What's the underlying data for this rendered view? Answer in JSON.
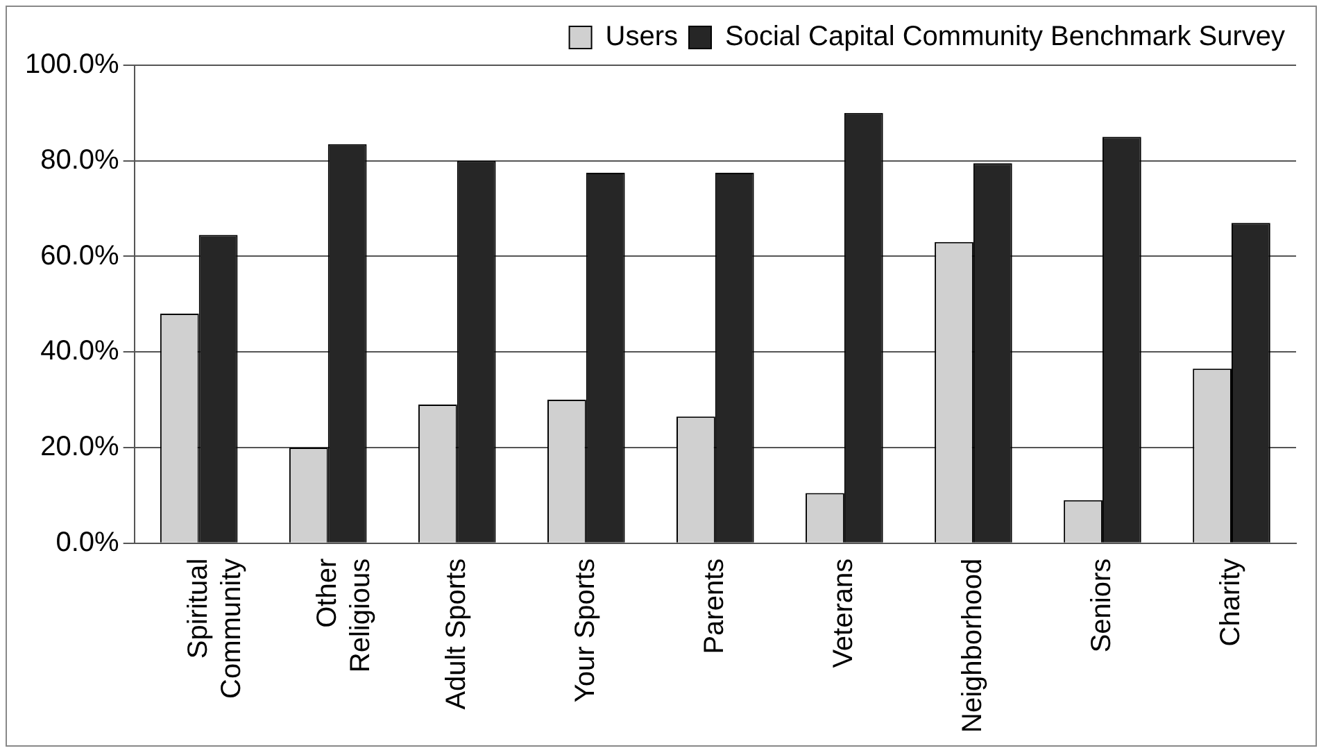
{
  "chart_data": {
    "type": "bar",
    "categories": [
      "Spiritual Community",
      "Other Religious",
      "Adult Sports",
      "Your Sports",
      "Parents",
      "Veterans",
      "Neighborhood",
      "Seniors",
      "Charity"
    ],
    "series": [
      {
        "name": "Users",
        "color": "#d0d0d0",
        "values": [
          48,
          20,
          29,
          30,
          26.5,
          10.5,
          63,
          9,
          36.5
        ]
      },
      {
        "name": "Social Capital Community Benchmark Survey",
        "color": "#262626",
        "values": [
          64.5,
          83.5,
          80,
          77.5,
          77.5,
          90,
          79.5,
          85,
          67
        ]
      }
    ],
    "ylim": [
      0,
      100
    ],
    "yticks": [
      {
        "value": 0,
        "label": "0.0%"
      },
      {
        "value": 20,
        "label": "20.0%"
      },
      {
        "value": 40,
        "label": "40.0%"
      },
      {
        "value": 60,
        "label": "60.0%"
      },
      {
        "value": 80,
        "label": "80.0%"
      },
      {
        "value": 100,
        "label": "100.0%"
      }
    ],
    "grid": "y",
    "legend": "top"
  }
}
